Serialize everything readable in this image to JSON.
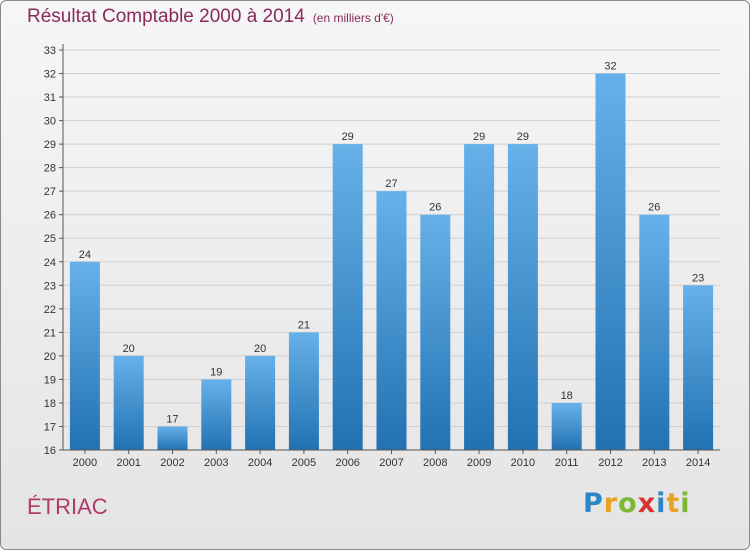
{
  "title": "Résultat Comptable 2000 à 2014",
  "unit_note": "(en milliers d'€)",
  "place_name": "ÉTRIAC",
  "logo": {
    "letters": [
      "P",
      "r",
      "o",
      "x",
      "i",
      "t",
      "i"
    ],
    "colors": [
      "#2b86c5",
      "#e8a320",
      "#7bb934",
      "#d8332d",
      "#2b86c5",
      "#e8a320",
      "#7bb934"
    ]
  },
  "colors": {
    "title": "#8b2a5c",
    "bar_top": "#66b1ea",
    "bar_bottom": "#2271b1",
    "grid": "#d0d0d0",
    "axis": "#555555"
  },
  "chart_data": {
    "type": "bar",
    "title": "Résultat Comptable 2000 à 2014",
    "xlabel": "",
    "ylabel": "",
    "ylim": [
      16,
      33
    ],
    "grid": true,
    "categories": [
      "2000",
      "2001",
      "2002",
      "2003",
      "2004",
      "2005",
      "2006",
      "2007",
      "2008",
      "2009",
      "2010",
      "2011",
      "2012",
      "2013",
      "2014"
    ],
    "values": [
      24,
      20,
      17,
      19,
      20,
      21,
      29,
      27,
      26,
      29,
      29,
      18,
      32,
      26,
      23
    ],
    "data_labels": [
      "24",
      "20",
      "17",
      "19",
      "20",
      "21",
      "29",
      "27",
      "26",
      "29",
      "29",
      "18",
      "32",
      "26",
      "23"
    ],
    "yticks": [
      16,
      17,
      18,
      19,
      20,
      21,
      22,
      23,
      24,
      25,
      26,
      27,
      28,
      29,
      30,
      31,
      32,
      33
    ]
  }
}
